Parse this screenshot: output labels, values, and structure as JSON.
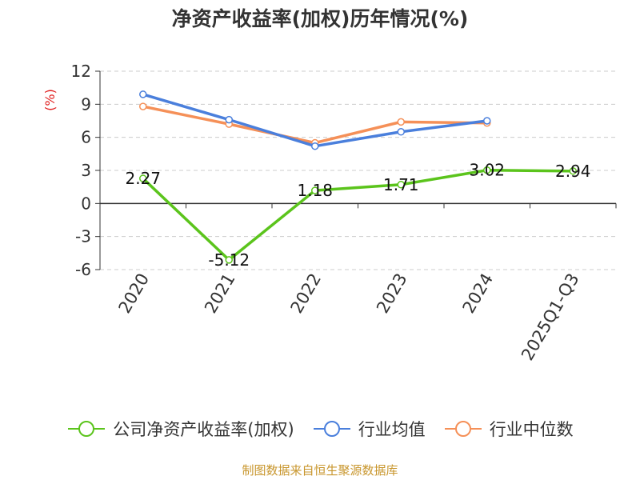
{
  "title": "净资产收益率(加权)历年情况(%)",
  "source": "制图数据来自恒生聚源数据库",
  "colors": {
    "company": "#5bc41c",
    "industry_avg": "#4a7fdc",
    "industry_median": "#f59058",
    "axis": "#333333",
    "grid": "#cccccc",
    "ylabel": "#e02020"
  },
  "chart_data": {
    "type": "line",
    "title": "净资产收益率(加权)历年情况(%)",
    "xlabel": "",
    "ylabel": "(%)",
    "categories": [
      "2020",
      "2021",
      "2022",
      "2023",
      "2024",
      "2025Q1-Q3"
    ],
    "ylim": [
      -6,
      12
    ],
    "yticks": [
      -6,
      -3,
      0,
      3,
      6,
      9,
      12
    ],
    "yticklabels": [
      "-6",
      "-3",
      "0",
      "3",
      "6",
      "9",
      "12"
    ],
    "grid": true,
    "legend_position": "bottom",
    "series": [
      {
        "name": "公司净资产收益率(加权)",
        "color": "#5bc41c",
        "values": [
          2.27,
          -5.12,
          1.18,
          1.71,
          3.02,
          2.94
        ],
        "labels": [
          "2.27",
          "-5.12",
          "1.18",
          "1.71",
          "3.02",
          "2.94"
        ]
      },
      {
        "name": "行业均值",
        "color": "#4a7fdc",
        "values": [
          9.9,
          7.6,
          5.2,
          6.5,
          7.5,
          null
        ]
      },
      {
        "name": "行业中位数",
        "color": "#f59058",
        "values": [
          8.8,
          7.2,
          5.5,
          7.4,
          7.3,
          null
        ]
      }
    ]
  }
}
